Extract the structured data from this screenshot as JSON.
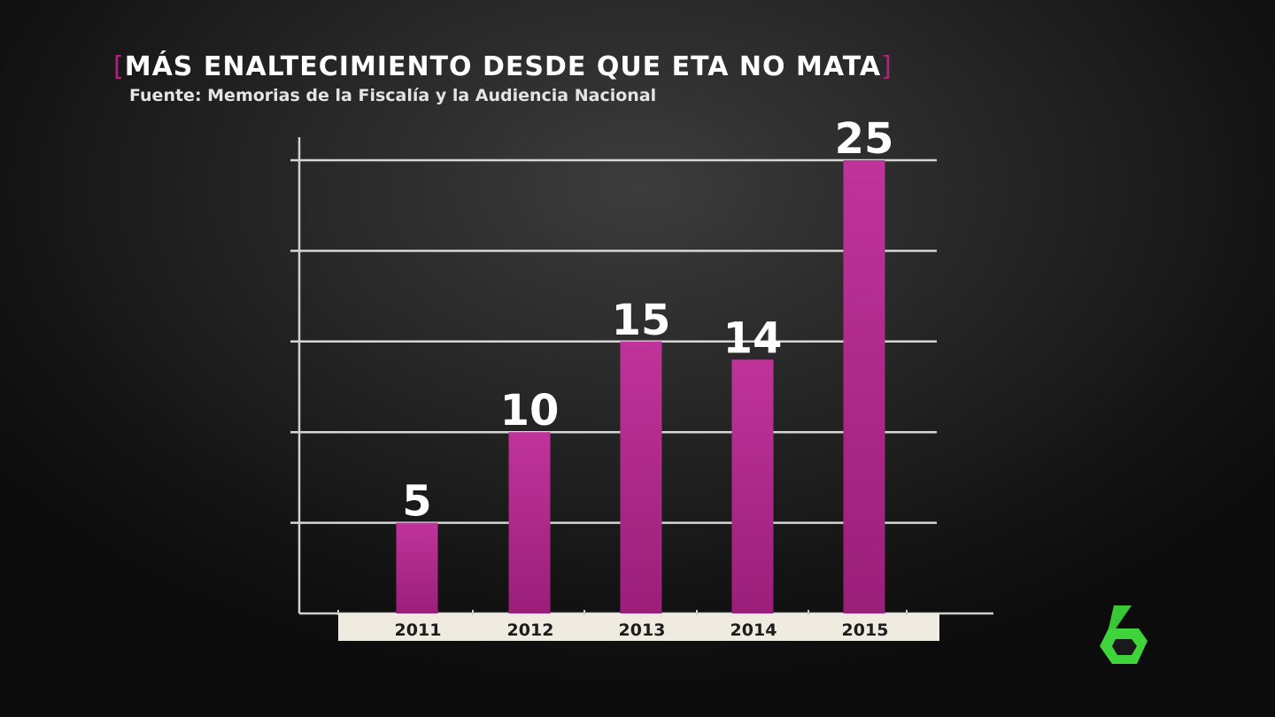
{
  "header": {
    "title": "MÁS ENALTECIMIENTO DESDE QUE ETA NO MATA",
    "source": "Fuente: Memorias de la Fiscalía y la Audiencia Nacional"
  },
  "colors": {
    "bar": "#c0339a",
    "bracket": "#b2217d",
    "axis_band": "#efebe1",
    "logo": "#3fd33c"
  },
  "logo": {
    "icon": "lasexta-6-logo"
  },
  "chart_data": {
    "type": "bar",
    "title": "MÁS ENALTECIMIENTO DESDE QUE ETA NO MATA",
    "subtitle": "Fuente: Memorias de la Fiscalía y la Audiencia Nacional",
    "categories": [
      "2011",
      "2012",
      "2013",
      "2014",
      "2015"
    ],
    "values": [
      5,
      10,
      15,
      14,
      25
    ],
    "xlabel": "",
    "ylabel": "",
    "ylim": [
      0,
      25
    ],
    "grid": true,
    "legend": "none"
  }
}
